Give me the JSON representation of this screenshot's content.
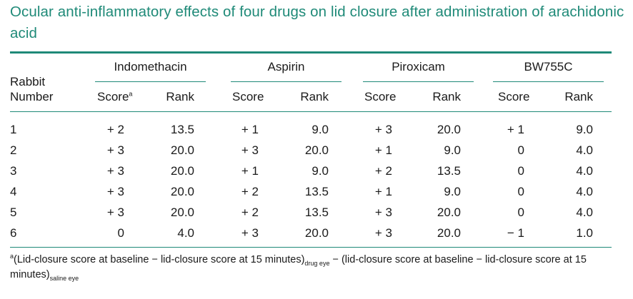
{
  "title": "Ocular anti-inflammatory effects of four drugs on lid closure after administration of arachidonic acid",
  "header": {
    "rabbit_line1": "Rabbit",
    "rabbit_line2": "Number",
    "drugs": [
      "Indomethacin",
      "Aspirin",
      "Piroxicam",
      "BW755C"
    ],
    "score_label": "Score",
    "score_footnote_marker": "a",
    "rank_label": "Rank"
  },
  "rows": [
    {
      "rabbit": "1",
      "cells": [
        "+ 2",
        "13.5",
        "+ 1",
        "9.0",
        "+ 3",
        "20.0",
        "+ 1",
        "9.0"
      ]
    },
    {
      "rabbit": "2",
      "cells": [
        "+ 3",
        "20.0",
        "+ 3",
        "20.0",
        "+ 1",
        "9.0",
        "0",
        "4.0"
      ]
    },
    {
      "rabbit": "3",
      "cells": [
        "+ 3",
        "20.0",
        "+ 1",
        "9.0",
        "+ 2",
        "13.5",
        "0",
        "4.0"
      ]
    },
    {
      "rabbit": "4",
      "cells": [
        "+ 3",
        "20.0",
        "+ 2",
        "13.5",
        "+ 1",
        "9.0",
        "0",
        "4.0"
      ]
    },
    {
      "rabbit": "5",
      "cells": [
        "+ 3",
        "20.0",
        "+ 2",
        "13.5",
        "+ 3",
        "20.0",
        "0",
        "4.0"
      ]
    },
    {
      "rabbit": "6",
      "cells": [
        "0",
        "4.0",
        "+ 3",
        "20.0",
        "+ 3",
        "20.0",
        "− 1",
        "1.0"
      ]
    }
  ],
  "footnote": {
    "marker": "a",
    "part1": "(Lid-closure score at baseline − lid-closure score at 15 minutes)",
    "sub1": "drug eye",
    "part2": " − (lid-closure score at baseline − lid-closure score at 15 minutes)",
    "sub2": "saline eye"
  },
  "colors": {
    "accent": "#1f8a78",
    "text": "#1a1a1a"
  }
}
